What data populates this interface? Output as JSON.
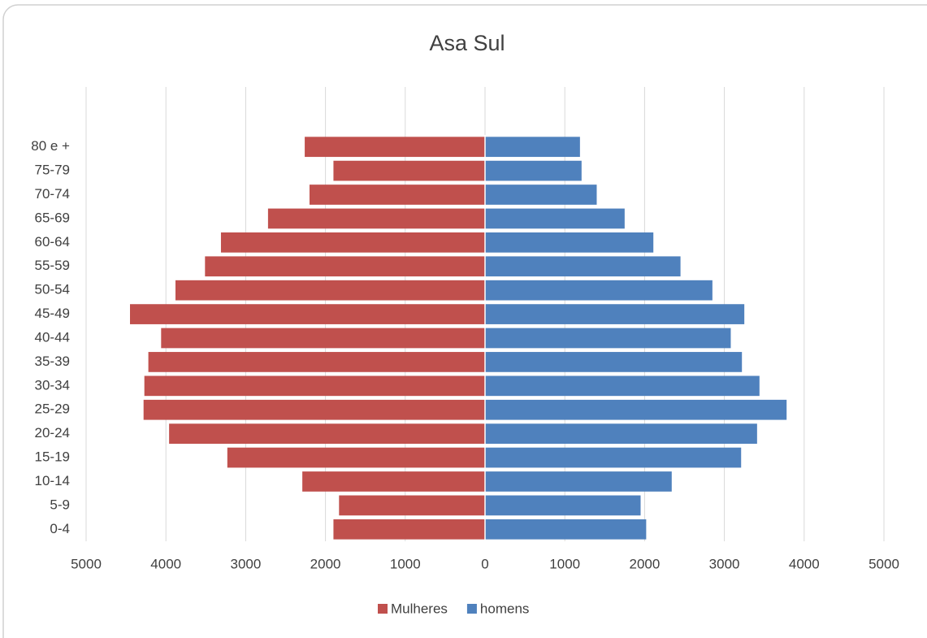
{
  "chart_data": {
    "type": "bar",
    "orientation": "horizontal",
    "title": "Asa Sul",
    "categories": [
      "0-4",
      "5-9",
      "10-14",
      "15-19",
      "20-24",
      "25-29",
      "30-34",
      "35-39",
      "40-44",
      "45-49",
      "50-54",
      "55-59",
      "60-64",
      "65-69",
      "70-74",
      "75-79",
      "80 e +"
    ],
    "series": [
      {
        "name": "Mulheres",
        "color": "#c0504d",
        "values": [
          -1900,
          -1830,
          -2290,
          -3230,
          -3960,
          -4280,
          -4270,
          -4220,
          -4060,
          -4450,
          -3880,
          -3510,
          -3310,
          -2720,
          -2200,
          -1900,
          -2260
        ]
      },
      {
        "name": "homens",
        "color": "#4f81bd",
        "values": [
          2020,
          1950,
          2340,
          3210,
          3410,
          3780,
          3440,
          3220,
          3080,
          3250,
          2850,
          2450,
          2110,
          1750,
          1400,
          1210,
          1190
        ]
      }
    ],
    "xlim": [
      -5000,
      5000
    ],
    "xticks": [
      {
        "value": -5000,
        "label": "5000"
      },
      {
        "value": -4000,
        "label": "4000"
      },
      {
        "value": -3000,
        "label": "3000"
      },
      {
        "value": -2000,
        "label": "2000"
      },
      {
        "value": -1000,
        "label": "1000"
      },
      0,
      1000,
      2000,
      3000,
      4000,
      5000
    ],
    "grid": true,
    "legend": "bottom"
  }
}
